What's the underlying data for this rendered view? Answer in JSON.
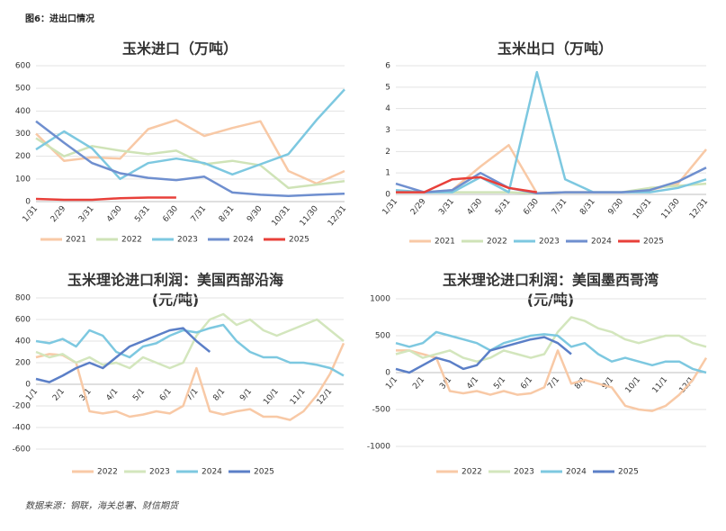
{
  "header": {
    "title": "图6：进出口情况"
  },
  "footer": {
    "source": "数据来源：钢联，海关总署、财信期货"
  },
  "chart_data": [
    {
      "type": "line",
      "title": "玉米进口（万吨）",
      "categories": [
        "1/31",
        "2/29",
        "3/31",
        "4/30",
        "5/31",
        "6/30",
        "7/31",
        "8/31",
        "9/30",
        "10/31",
        "11/30",
        "12/31"
      ],
      "ylim": [
        0,
        600
      ],
      "yticks": [
        0,
        100,
        200,
        300,
        400,
        500,
        600
      ],
      "grid": true,
      "series": [
        {
          "name": "2021",
          "color": "#f8c9a6",
          "values": [
            300,
            180,
            195,
            190,
            320,
            360,
            290,
            325,
            355,
            135,
            80,
            135
          ]
        },
        {
          "name": "2022",
          "color": "#cfe3b7",
          "values": [
            280,
            200,
            245,
            225,
            210,
            225,
            165,
            180,
            160,
            60,
            75,
            90
          ]
        },
        {
          "name": "2023",
          "color": "#7dc8e0",
          "values": [
            230,
            310,
            235,
            100,
            170,
            190,
            170,
            120,
            165,
            210,
            360,
            495
          ]
        },
        {
          "name": "2024",
          "color": "#6f8fcf",
          "values": [
            355,
            260,
            170,
            125,
            105,
            95,
            110,
            40,
            30,
            25,
            30,
            35
          ]
        },
        {
          "name": "2025",
          "color": "#e8403a",
          "values": [
            12,
            8,
            8,
            15,
            18,
            18,
            null,
            null,
            null,
            null,
            null,
            null
          ]
        }
      ]
    },
    {
      "type": "line",
      "title": "玉米出口（万吨）",
      "categories": [
        "1/31",
        "2/29",
        "3/31",
        "4/30",
        "5/31",
        "6/30",
        "7/31",
        "8/31",
        "9/30",
        "10/31",
        "11/30",
        "12/31"
      ],
      "ylim": [
        0,
        6
      ],
      "yticks": [
        0,
        1,
        2,
        3,
        4,
        5,
        6
      ],
      "grid": true,
      "series": [
        {
          "name": "2021",
          "color": "#f8c9a6",
          "values": [
            0.1,
            0.1,
            0.2,
            1.3,
            2.3,
            0.05,
            0.1,
            0.1,
            0.1,
            0.2,
            0.5,
            2.1
          ]
        },
        {
          "name": "2022",
          "color": "#cfe3b7",
          "values": [
            0.1,
            0.1,
            0.1,
            0.1,
            0.1,
            0.05,
            0.1,
            0.1,
            0.1,
            0.3,
            0.4,
            0.5
          ]
        },
        {
          "name": "2023",
          "color": "#7dc8e0",
          "values": [
            0.2,
            0.1,
            0.1,
            0.8,
            0.1,
            5.7,
            0.7,
            0.1,
            0.1,
            0.1,
            0.3,
            0.7
          ]
        },
        {
          "name": "2024",
          "color": "#6f8fcf",
          "values": [
            0.5,
            0.1,
            0.2,
            1.0,
            0.3,
            0.05,
            0.1,
            0.1,
            0.1,
            0.2,
            0.6,
            1.25
          ]
        },
        {
          "name": "2025",
          "color": "#e8403a",
          "values": [
            0.1,
            0.1,
            0.7,
            0.8,
            0.3,
            0.1,
            null,
            null,
            null,
            null,
            null,
            null
          ]
        }
      ]
    },
    {
      "type": "line",
      "title": [
        "玉米理论进口利润：美国西部沿海",
        "(元/吨)"
      ],
      "categories": [
        "1/1",
        null,
        "2/1",
        null,
        "3/1",
        null,
        "4/1",
        null,
        "5/1",
        null,
        "6/1",
        null,
        "7/1",
        null,
        "8/1",
        null,
        "9/1",
        null,
        "10/1",
        null,
        "11/1",
        null,
        "12/1",
        null
      ],
      "ylim": [
        -600,
        800
      ],
      "yticks": [
        -600,
        -400,
        -200,
        0,
        200,
        400,
        600,
        800
      ],
      "grid": true,
      "series": [
        {
          "name": "2022",
          "color": "#f8c9a6",
          "values": [
            250,
            280,
            270,
            200,
            -250,
            -270,
            -250,
            -300,
            -280,
            -250,
            -270,
            -200,
            150,
            -250,
            -280,
            -250,
            -230,
            -300,
            -300,
            -330,
            -250,
            -100,
            100,
            380
          ]
        },
        {
          "name": "2023",
          "color": "#d3e6bd",
          "values": [
            300,
            250,
            280,
            200,
            250,
            180,
            200,
            150,
            250,
            200,
            150,
            200,
            450,
            600,
            650,
            550,
            600,
            500,
            450,
            500,
            550,
            600,
            500,
            400
          ]
        },
        {
          "name": "2024",
          "color": "#7dc8e0",
          "values": [
            400,
            380,
            420,
            350,
            500,
            450,
            300,
            250,
            350,
            380,
            450,
            500,
            480,
            520,
            550,
            400,
            300,
            250,
            250,
            200,
            200,
            180,
            150,
            80
          ]
        },
        {
          "name": "2025",
          "color": "#5b7fc7",
          "values": [
            50,
            20,
            80,
            150,
            200,
            150,
            250,
            350,
            400,
            450,
            500,
            520,
            400,
            300,
            null,
            null,
            null,
            null,
            null,
            null,
            null,
            null,
            null,
            null
          ]
        }
      ]
    },
    {
      "type": "line",
      "title": [
        "玉米理论进口利润：美国墨西哥湾",
        "(元/吨)"
      ],
      "categories": [
        "1/1",
        null,
        "2/1",
        null,
        "3/1",
        null,
        "4/1",
        null,
        "5/1",
        null,
        "6/1",
        null,
        "7/1",
        null,
        "8/1",
        null,
        "9/1",
        null,
        "10/1",
        null,
        "11/1",
        null,
        "12/1",
        null
      ],
      "ylim": [
        -1000,
        1000
      ],
      "yticks": [
        -1000,
        -500,
        0,
        500,
        1000
      ],
      "grid": true,
      "series": [
        {
          "name": "2022",
          "color": "#f8c9a6",
          "values": [
            300,
            300,
            250,
            200,
            -250,
            -280,
            -250,
            -300,
            -250,
            -300,
            -280,
            -200,
            300,
            -150,
            -100,
            -150,
            -200,
            -450,
            -500,
            -520,
            -450,
            -300,
            -100,
            200
          ]
        },
        {
          "name": "2023",
          "color": "#d3e6bd",
          "values": [
            250,
            300,
            200,
            250,
            300,
            200,
            150,
            200,
            300,
            250,
            200,
            250,
            550,
            750,
            700,
            600,
            550,
            450,
            400,
            450,
            500,
            500,
            400,
            350
          ]
        },
        {
          "name": "2024",
          "color": "#7dc8e0",
          "values": [
            400,
            350,
            400,
            550,
            500,
            450,
            400,
            300,
            400,
            450,
            500,
            520,
            500,
            350,
            400,
            250,
            150,
            200,
            150,
            100,
            150,
            150,
            50,
            0
          ]
        },
        {
          "name": "2025",
          "color": "#5b7fc7",
          "values": [
            50,
            0,
            100,
            200,
            150,
            50,
            100,
            300,
            350,
            400,
            450,
            480,
            400,
            250,
            null,
            null,
            null,
            null,
            null,
            null,
            null,
            null,
            null,
            null
          ]
        }
      ]
    }
  ]
}
